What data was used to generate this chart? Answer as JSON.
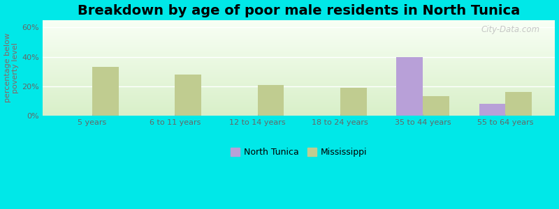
{
  "title": "Breakdown by age of poor male residents in North Tunica",
  "ylabel": "percentage below\npoverty level",
  "categories": [
    "5 years",
    "6 to 11 years",
    "12 to 14 years",
    "18 to 24 years",
    "35 to 44 years",
    "55 to 64 years"
  ],
  "north_tunica": [
    null,
    null,
    null,
    null,
    40.0,
    8.0
  ],
  "mississippi": [
    33.0,
    28.0,
    21.0,
    19.0,
    13.0,
    16.0
  ],
  "nt_color": "#b8a0d8",
  "ms_color": "#c0cc90",
  "bg_color": "#00e8e8",
  "grad_top": "#f8fff5",
  "grad_bottom": "#d8efc8",
  "title_fontsize": 14,
  "yticks": [
    0,
    20,
    40,
    60
  ],
  "ylim": [
    0,
    65
  ],
  "bar_width": 0.32,
  "watermark": "City-Data.com"
}
